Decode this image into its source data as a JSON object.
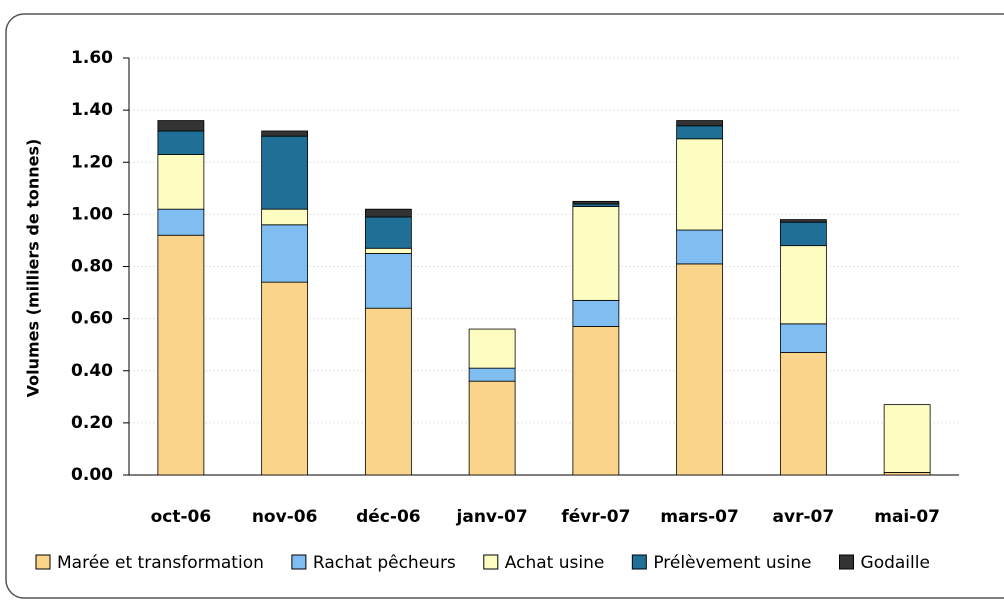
{
  "chart_data": {
    "type": "stacked_bar",
    "y_label": "Volumes (milliers de tonnes)",
    "categories": [
      "oct-06",
      "nov-06",
      "déc-06",
      "janv-07",
      "févr-07",
      "mars-07",
      "avr-07",
      "mai-07"
    ],
    "series": [
      {
        "name": "Marée et transformation",
        "color": "#fad48a",
        "values": [
          0.92,
          0.74,
          0.64,
          0.36,
          0.57,
          0.81,
          0.47,
          0.01
        ]
      },
      {
        "name": "Rachat pêcheurs",
        "color": "#80bdf0",
        "values": [
          0.1,
          0.22,
          0.21,
          0.05,
          0.1,
          0.13,
          0.11,
          0
        ]
      },
      {
        "name": "Achat usine",
        "color": "#fdfdc2",
        "values": [
          0.21,
          0.06,
          0.02,
          0.15,
          0.36,
          0.35,
          0.3,
          0.26
        ]
      },
      {
        "name": "Prélèvement usine",
        "color": "#1f6f96",
        "values": [
          0.09,
          0.28,
          0.12,
          0,
          0.01,
          0.05,
          0.09,
          0
        ]
      },
      {
        "name": "Godaille",
        "color": "#333333",
        "values": [
          0.04,
          0.02,
          0.03,
          0,
          0.01,
          0.02,
          0.01,
          0
        ]
      }
    ],
    "ylim": [
      0,
      1.6
    ],
    "yticks": [
      {
        "value": 0,
        "label": "0.00"
      },
      {
        "value": 0.2,
        "label": "0.20"
      },
      {
        "value": 0.4,
        "label": "0.40"
      },
      {
        "value": 0.6,
        "label": "0.60"
      },
      {
        "value": 0.8,
        "label": "0.80"
      },
      {
        "value": 1.0,
        "label": "1.00"
      },
      {
        "value": 1.2,
        "label": "1.20"
      },
      {
        "value": 1.4,
        "label": "1.40"
      },
      {
        "value": 1.6,
        "label": "1.60"
      }
    ],
    "grid": true,
    "legend": "bottom"
  }
}
